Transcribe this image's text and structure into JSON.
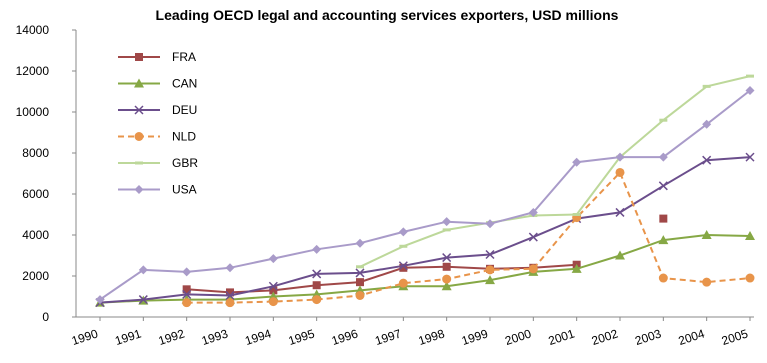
{
  "chart_data": {
    "type": "line",
    "title": "Leading OECD legal and accounting services exporters, USD millions",
    "xlabel": "",
    "ylabel": "",
    "ylim": [
      0,
      14000
    ],
    "yticks": [
      0,
      2000,
      4000,
      6000,
      8000,
      10000,
      12000,
      14000
    ],
    "grid": false,
    "legend_position": "top-left",
    "categories": [
      "1990",
      "1991",
      "1992",
      "1993",
      "1994",
      "1995",
      "1996",
      "1997",
      "1998",
      "1999",
      "2000",
      "2001",
      "2002",
      "2003",
      "2004",
      "2005"
    ],
    "series": [
      {
        "name": "FRA",
        "color": "#A04848",
        "marker": "square",
        "dash": false,
        "values": [
          null,
          null,
          1350,
          1200,
          1300,
          1550,
          1700,
          2400,
          2450,
          2350,
          2400,
          2550,
          null,
          4800,
          null,
          null
        ]
      },
      {
        "name": "CAN",
        "color": "#86A845",
        "marker": "triangle",
        "dash": false,
        "values": [
          700,
          800,
          850,
          850,
          1000,
          1100,
          1300,
          1500,
          1500,
          1800,
          2200,
          2350,
          3000,
          3750,
          4000,
          3950
        ]
      },
      {
        "name": "DEU",
        "color": "#6B4E8C",
        "marker": "x",
        "dash": false,
        "values": [
          700,
          850,
          1100,
          1050,
          1500,
          2100,
          2150,
          2500,
          2900,
          3050,
          3900,
          4800,
          5100,
          6400,
          7650,
          7800
        ]
      },
      {
        "name": "NLD",
        "color": "#E8944A",
        "marker": "circle",
        "dash": true,
        "values": [
          null,
          null,
          700,
          700,
          750,
          850,
          1050,
          1650,
          1850,
          2300,
          2350,
          4850,
          7050,
          1900,
          1700,
          1900
        ]
      },
      {
        "name": "GBR",
        "color": "#BDD89A",
        "marker": "dash",
        "dash": false,
        "values": [
          null,
          null,
          null,
          null,
          null,
          null,
          2450,
          3450,
          4250,
          4600,
          4950,
          5000,
          7800,
          9600,
          11250,
          11750
        ]
      },
      {
        "name": "USA",
        "color": "#A99BC9",
        "marker": "diamond",
        "dash": false,
        "values": [
          850,
          2300,
          2200,
          2400,
          2850,
          3300,
          3600,
          4150,
          4650,
          4550,
          5100,
          7550,
          7800,
          7800,
          9400,
          11050
        ]
      }
    ]
  }
}
